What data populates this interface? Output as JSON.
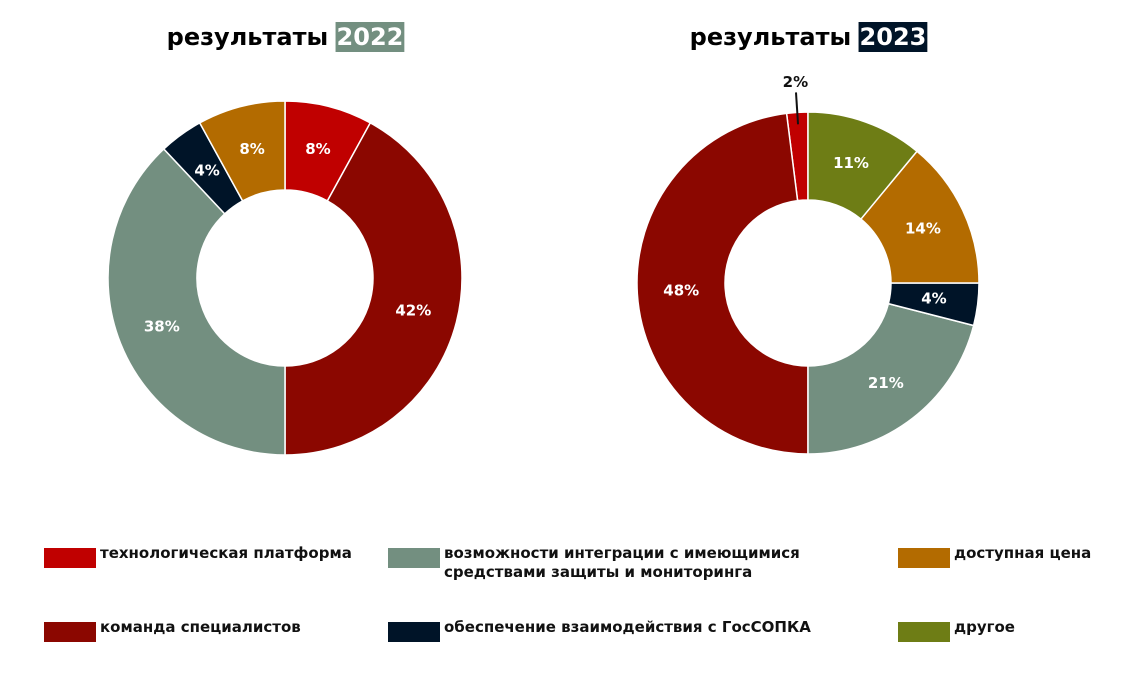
{
  "chart_data": [
    {
      "type": "donut",
      "title": "результаты",
      "title_highlight": "2022",
      "title_highlight_color": "#738f80",
      "direction": "clockwise",
      "categories": [
        "технологическая платформа",
        "команда специалистов",
        "возможности интеграции с имеющимися средствами защиты и мониторинга",
        "обеспечение взаимодействия с ГосСОПКА",
        "доступная цена"
      ],
      "values": [
        8,
        42,
        38,
        4,
        8
      ],
      "value_labels": [
        "8%",
        "42%",
        "38%",
        "4%",
        "8%"
      ],
      "colors": [
        "#c00000",
        "#8b0700",
        "#738f80",
        "#001428",
        "#b36b00"
      ]
    },
    {
      "type": "donut",
      "title": "результаты",
      "title_highlight": "2023",
      "title_highlight_color": "#001428",
      "direction": "counterclockwise",
      "categories": [
        "технологическая платформа",
        "команда специалистов",
        "возможности интеграции с имеющимися средствами защиты и мониторинга",
        "обеспечение взаимодействия с ГосСОПКА",
        "доступная цена",
        "другое"
      ],
      "values": [
        2,
        48,
        21,
        4,
        14,
        11
      ],
      "value_labels": [
        "2%",
        "48%",
        "21%",
        "4%",
        "14%",
        "11%"
      ],
      "colors": [
        "#c00000",
        "#8b0700",
        "#738f80",
        "#001428",
        "#b36b00",
        "#6e7d15"
      ]
    }
  ]
}
